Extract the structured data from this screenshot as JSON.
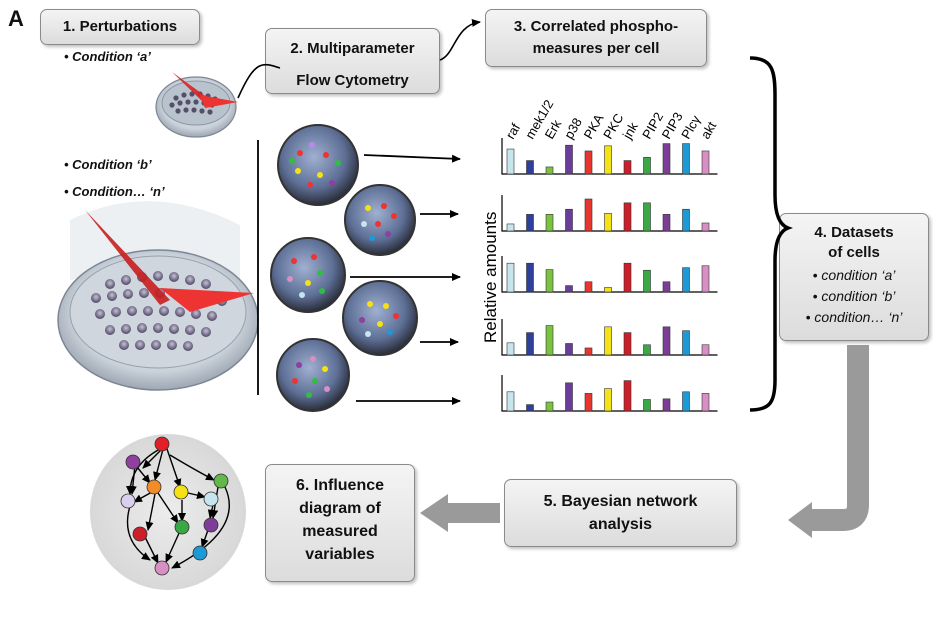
{
  "panel_label": "A",
  "steps": {
    "s1": "1. Perturbations",
    "s2_line1": "2. Multiparameter",
    "s2_line2": "Flow Cytometry",
    "s3_line1": "3. Correlated phospho-",
    "s3_line2": "measures per cell",
    "s4_line1": "4. Datasets",
    "s4_line2": "of cells",
    "s5_line1": "5. Bayesian network",
    "s5_line2": "analysis",
    "s6_line1": "6. Influence",
    "s6_line2": "diagram of",
    "s6_line3": "measured",
    "s6_line4": "variables"
  },
  "conditions_left": [
    "Condition ‘a’",
    "Condition ‘b’",
    "Condition… ‘n’"
  ],
  "conditions_box4": [
    "condition ‘a’",
    "condition ‘b’",
    "condition… ‘n’"
  ],
  "ylabel": "Relative amounts",
  "chart_data": {
    "type": "bar",
    "categories": [
      "raf",
      "mek1/2",
      "Erk",
      "p38",
      "PKA",
      "PKC",
      "jnk",
      "PIP2",
      "PIP3",
      "Plcγ",
      "akt"
    ],
    "colors": [
      "#c6e6ee",
      "#2e3f9c",
      "#7cc242",
      "#6b3d9a",
      "#e8352e",
      "#f5e216",
      "#cc1f2a",
      "#3aa845",
      "#7d3c98",
      "#1b9ad6",
      "#d78fc4"
    ],
    "series": [
      {
        "values": [
          0.78,
          0.42,
          0.22,
          0.9,
          0.72,
          0.88,
          0.42,
          0.52,
          0.95,
          0.95,
          0.72
        ]
      },
      {
        "values": [
          0.22,
          0.52,
          0.52,
          0.68,
          1.0,
          0.55,
          0.88,
          0.88,
          0.52,
          0.68,
          0.25
        ]
      },
      {
        "values": [
          0.9,
          0.9,
          0.7,
          0.2,
          0.32,
          0.14,
          0.9,
          0.68,
          0.32,
          0.76,
          0.82
        ]
      },
      {
        "values": [
          0.38,
          0.7,
          0.92,
          0.36,
          0.22,
          0.88,
          0.7,
          0.32,
          0.88,
          0.76,
          0.32
        ]
      },
      {
        "values": [
          0.6,
          0.2,
          0.28,
          0.88,
          0.55,
          0.7,
          0.95,
          0.36,
          0.38,
          0.6,
          0.55
        ]
      }
    ]
  },
  "network": {
    "nodes": [
      {
        "id": "raf",
        "color": "#e21f26"
      },
      {
        "id": "mek",
        "color": "#8e3fa0"
      },
      {
        "id": "erk",
        "color": "#d9d0f0"
      },
      {
        "id": "plcg",
        "color": "#f28c28"
      },
      {
        "id": "pkc",
        "color": "#f5e216"
      },
      {
        "id": "pka",
        "color": "#c6e6ee"
      },
      {
        "id": "p38",
        "color": "#62b84a"
      },
      {
        "id": "jnk",
        "color": "#3aa845"
      },
      {
        "id": "pip3",
        "color": "#7d3c98"
      },
      {
        "id": "pip2",
        "color": "#cc1f2a"
      },
      {
        "id": "akt",
        "color": "#1b9ad6"
      },
      {
        "id": "sink",
        "color": "#d78fc4"
      }
    ]
  }
}
